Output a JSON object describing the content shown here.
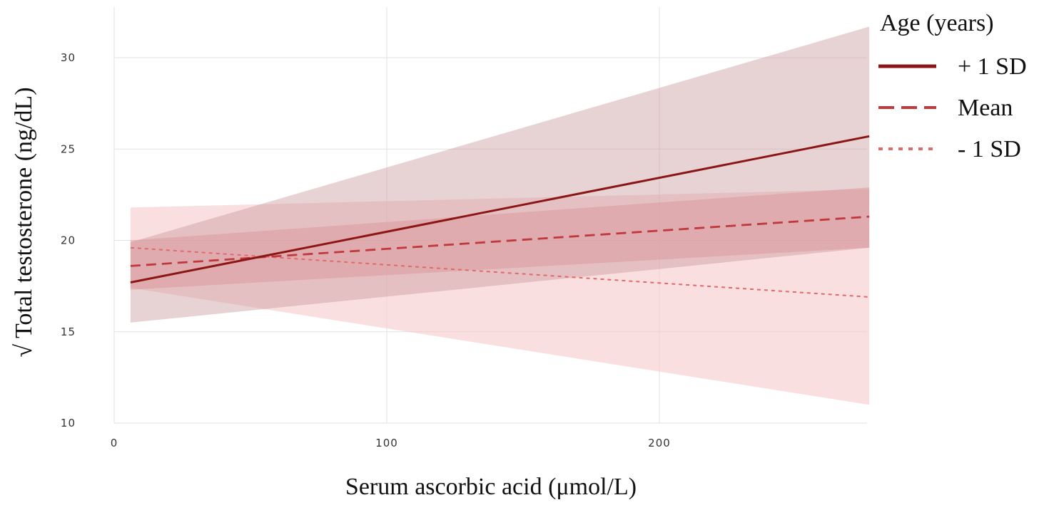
{
  "chart_data": {
    "type": "line",
    "xlabel": "Serum ascorbic acid (μmol/L)",
    "ylabel": "√ Total testosterone (ng/dL)",
    "xlim": [
      0,
      277
    ],
    "ylim": [
      10,
      32
    ],
    "x_ticks": [
      0,
      100,
      200
    ],
    "y_ticks": [
      10,
      15,
      20,
      25,
      30
    ],
    "grid": true,
    "legend": {
      "title": "Age (years)",
      "placement": "right",
      "entries": [
        "+ 1 SD",
        "Mean",
        "- 1 SD"
      ]
    },
    "series": [
      {
        "name": "- 1 SD",
        "line_style": "dotted",
        "color": "#e06a6a",
        "band_color": "#f6c4c6",
        "band_opacity": 0.55,
        "x": [
          6,
          277
        ],
        "y": [
          19.6,
          16.9
        ],
        "ci_lower": [
          17.4,
          11.0
        ],
        "ci_upper": [
          21.8,
          22.8
        ]
      },
      {
        "name": "Mean",
        "line_style": "dashed",
        "color": "#c0393c",
        "band_color": "#e98e92",
        "band_opacity": 0.45,
        "x": [
          6,
          277
        ],
        "y": [
          18.6,
          21.3
        ],
        "ci_lower": [
          17.3,
          19.6
        ],
        "ci_upper": [
          20.0,
          22.9
        ]
      },
      {
        "name": "+ 1 SD",
        "line_style": "solid",
        "color": "#8c1515",
        "band_color": "#c79598",
        "band_opacity": 0.42,
        "x": [
          6,
          277
        ],
        "y": [
          17.7,
          25.7
        ],
        "ci_lower": [
          15.5,
          19.6
        ],
        "ci_upper": [
          19.9,
          31.7
        ]
      }
    ]
  }
}
